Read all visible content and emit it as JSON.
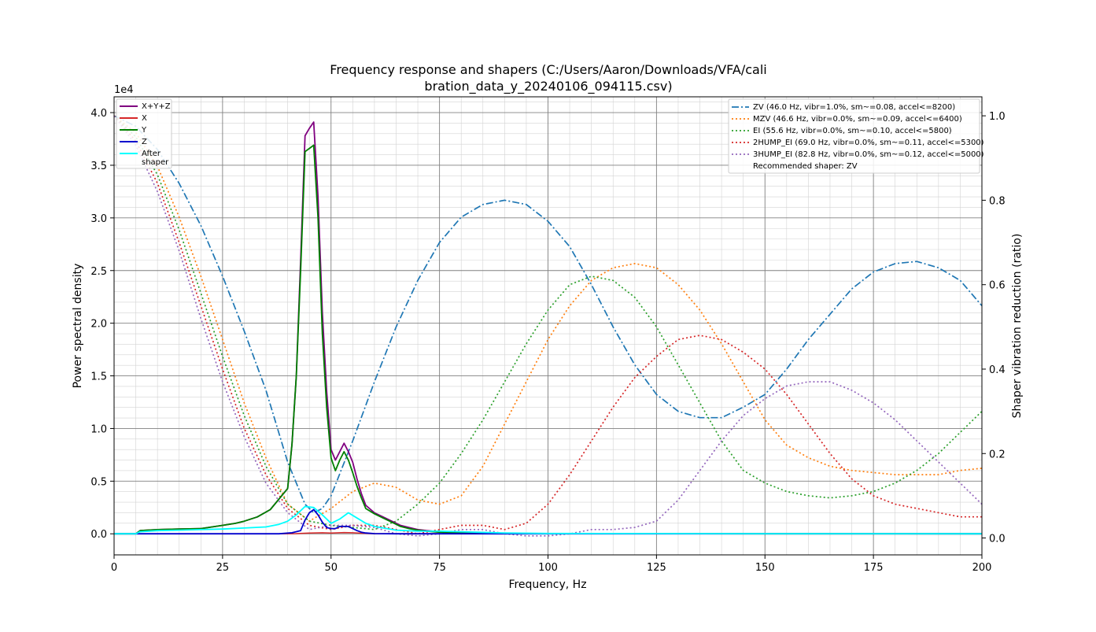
{
  "chart_data": {
    "type": "line",
    "title_lines": [
      "Frequency response and shapers (C:/Users/Aaron/Downloads/VFA/cali",
      "bration_data_y_20240106_094115.csv)"
    ],
    "xlabel": "Frequency, Hz",
    "ylabel": "Power spectral density",
    "y2label": "Shaper vibration reduction (ratio)",
    "y_offset_label": "1e4",
    "xlim": [
      0,
      200
    ],
    "ylim": [
      -2000,
      41500
    ],
    "y2lim": [
      -0.04,
      1.045
    ],
    "x_ticks": [
      0,
      25,
      50,
      75,
      100,
      125,
      150,
      175,
      200
    ],
    "y_ticks": [
      0,
      5000,
      10000,
      15000,
      20000,
      25000,
      30000,
      35000,
      40000
    ],
    "y_tick_labels": [
      "0.0",
      "0.5",
      "1.0",
      "1.5",
      "2.0",
      "2.5",
      "3.0",
      "3.5",
      "4.0"
    ],
    "y2_ticks": [
      0,
      0.2,
      0.4,
      0.6,
      0.8,
      1.0
    ],
    "y2_tick_labels": [
      "0.0",
      "0.2",
      "0.4",
      "0.6",
      "0.8",
      "1.0"
    ],
    "grid": true,
    "legend_left_position": "top-left",
    "legend_right_position": "top-right",
    "psd_series": [
      {
        "name": "X+Y+Z",
        "color": "#800080",
        "width": 1.8,
        "x": [
          0,
          5,
          6,
          10,
          15,
          20,
          25,
          28,
          30,
          33,
          36,
          38,
          40,
          41,
          42,
          43,
          44,
          45,
          46,
          47,
          48,
          49,
          50,
          51,
          52,
          53,
          54,
          55,
          56,
          57,
          58,
          60,
          62,
          64,
          66,
          68,
          70,
          72,
          75,
          80,
          90,
          100,
          150,
          200
        ],
        "y": [
          0,
          0,
          300,
          400,
          450,
          500,
          800,
          1000,
          1200,
          1600,
          2300,
          3300,
          4300,
          8500,
          15000,
          26000,
          37800,
          38500,
          39100,
          32000,
          21000,
          13500,
          8000,
          7000,
          7800,
          8600,
          7800,
          6800,
          5200,
          3800,
          2700,
          2000,
          1600,
          1200,
          800,
          600,
          400,
          300,
          200,
          100,
          50,
          20,
          10,
          0
        ]
      },
      {
        "name": "X",
        "color": "#d62728",
        "width": 1.5,
        "x": [
          0,
          38,
          42,
          45,
          48,
          50,
          53,
          55,
          58,
          60,
          200
        ],
        "y": [
          0,
          0,
          20,
          80,
          100,
          80,
          120,
          100,
          40,
          10,
          0
        ]
      },
      {
        "name": "Y",
        "color": "#008000",
        "width": 1.8,
        "x": [
          0,
          5,
          6,
          10,
          15,
          20,
          25,
          28,
          30,
          33,
          36,
          38,
          40,
          41,
          42,
          43,
          44,
          45,
          46,
          47,
          48,
          49,
          50,
          51,
          52,
          53,
          54,
          55,
          56,
          57,
          58,
          60,
          62,
          64,
          66,
          68,
          70,
          72,
          75,
          80,
          90,
          100,
          150,
          200
        ],
        "y": [
          0,
          0,
          300,
          400,
          450,
          500,
          800,
          1000,
          1200,
          1600,
          2300,
          3300,
          4300,
          8500,
          15000,
          25000,
          36300,
          36600,
          36900,
          30000,
          19000,
          12000,
          7200,
          6000,
          7000,
          7800,
          7000,
          5800,
          4500,
          3400,
          2400,
          1900,
          1500,
          1100,
          700,
          500,
          350,
          250,
          150,
          80,
          40,
          15,
          5,
          0
        ]
      },
      {
        "name": "Z",
        "color": "#0000cd",
        "width": 1.8,
        "x": [
          0,
          38,
          41,
          43,
          44,
          45,
          46,
          47,
          48,
          49,
          50,
          51,
          52,
          53,
          54,
          55,
          56,
          57,
          58,
          60,
          65,
          200
        ],
        "y": [
          0,
          0,
          100,
          300,
          1300,
          2000,
          2300,
          1800,
          1100,
          600,
          500,
          500,
          700,
          700,
          700,
          500,
          300,
          150,
          80,
          20,
          0,
          0
        ]
      },
      {
        "name": "After\nshaper",
        "color": "#00ffff",
        "width": 1.8,
        "x": [
          0,
          5,
          6,
          10,
          15,
          20,
          25,
          30,
          35,
          38,
          40,
          42,
          44,
          46,
          48,
          50,
          52,
          54,
          56,
          58,
          60,
          65,
          70,
          75,
          80,
          90,
          100,
          150,
          200
        ],
        "y": [
          0,
          0,
          200,
          300,
          350,
          400,
          450,
          550,
          650,
          900,
          1200,
          1800,
          2600,
          2500,
          1800,
          1000,
          1400,
          2000,
          1500,
          1000,
          700,
          350,
          250,
          250,
          200,
          80,
          30,
          10,
          0
        ]
      }
    ],
    "shaper_series": [
      {
        "name": "ZV (46.0 Hz, vibr=1.0%, sm~=0.08, accel<=8200)",
        "color": "#1f77b4",
        "style": "dashdot",
        "x": [
          0,
          5,
          10,
          15,
          20,
          25,
          30,
          35,
          40,
          44,
          46,
          48,
          50,
          55,
          60,
          65,
          70,
          75,
          80,
          85,
          90,
          95,
          100,
          105,
          110,
          115,
          120,
          125,
          130,
          135,
          140,
          145,
          150,
          155,
          160,
          165,
          170,
          175,
          180,
          185,
          190,
          195,
          200
        ],
        "y": [
          1.0,
          0.975,
          0.92,
          0.84,
          0.74,
          0.62,
          0.49,
          0.35,
          0.18,
          0.08,
          0.06,
          0.07,
          0.1,
          0.23,
          0.37,
          0.5,
          0.61,
          0.7,
          0.76,
          0.79,
          0.8,
          0.79,
          0.75,
          0.69,
          0.6,
          0.5,
          0.41,
          0.34,
          0.3,
          0.285,
          0.285,
          0.31,
          0.34,
          0.4,
          0.47,
          0.53,
          0.59,
          0.63,
          0.65,
          0.655,
          0.64,
          0.61,
          0.55
        ]
      },
      {
        "name": "MZV (46.6 Hz, vibr=0.0%, sm~=0.09, accel<=6400)",
        "color": "#ff7f0e",
        "style": "dotted",
        "x": [
          0,
          5,
          10,
          15,
          20,
          25,
          30,
          35,
          40,
          45,
          50,
          55,
          60,
          65,
          70,
          75,
          80,
          85,
          90,
          95,
          100,
          105,
          110,
          115,
          120,
          125,
          130,
          135,
          140,
          145,
          150,
          155,
          160,
          165,
          170,
          175,
          180,
          185,
          190,
          195,
          200
        ],
        "y": [
          1.0,
          0.96,
          0.88,
          0.76,
          0.62,
          0.47,
          0.32,
          0.19,
          0.08,
          0.04,
          0.07,
          0.11,
          0.13,
          0.12,
          0.09,
          0.08,
          0.1,
          0.17,
          0.27,
          0.37,
          0.47,
          0.55,
          0.61,
          0.64,
          0.65,
          0.64,
          0.6,
          0.54,
          0.46,
          0.37,
          0.28,
          0.22,
          0.19,
          0.17,
          0.16,
          0.155,
          0.15,
          0.15,
          0.15,
          0.16,
          0.165
        ]
      },
      {
        "name": "EI (55.6 Hz, vibr=0.0%, sm~=0.10, accel<=5800)",
        "color": "#2ca02c",
        "style": "dotted",
        "x": [
          0,
          5,
          10,
          15,
          20,
          25,
          30,
          35,
          40,
          45,
          50,
          55,
          60,
          65,
          70,
          75,
          80,
          85,
          90,
          95,
          100,
          105,
          110,
          115,
          120,
          125,
          130,
          135,
          140,
          145,
          150,
          155,
          160,
          165,
          170,
          175,
          180,
          185,
          190,
          195,
          200
        ],
        "y": [
          1.0,
          0.95,
          0.86,
          0.73,
          0.58,
          0.43,
          0.29,
          0.17,
          0.08,
          0.04,
          0.03,
          0.025,
          0.02,
          0.04,
          0.08,
          0.13,
          0.2,
          0.28,
          0.37,
          0.46,
          0.54,
          0.6,
          0.62,
          0.61,
          0.57,
          0.5,
          0.41,
          0.32,
          0.23,
          0.16,
          0.13,
          0.11,
          0.1,
          0.095,
          0.1,
          0.11,
          0.13,
          0.16,
          0.2,
          0.25,
          0.3
        ]
      },
      {
        "name": "2HUMP_EI (69.0 Hz, vibr=0.0%, sm~=0.11, accel<=5300)",
        "color": "#d62728",
        "style": "dotted",
        "x": [
          0,
          5,
          10,
          15,
          20,
          25,
          30,
          35,
          40,
          45,
          50,
          55,
          60,
          65,
          70,
          75,
          80,
          85,
          90,
          95,
          100,
          105,
          110,
          115,
          120,
          125,
          130,
          135,
          140,
          145,
          150,
          155,
          160,
          165,
          170,
          175,
          180,
          185,
          190,
          195,
          200
        ],
        "y": [
          1.0,
          0.94,
          0.84,
          0.7,
          0.55,
          0.4,
          0.26,
          0.15,
          0.07,
          0.03,
          0.02,
          0.03,
          0.03,
          0.02,
          0.01,
          0.02,
          0.03,
          0.03,
          0.02,
          0.035,
          0.08,
          0.15,
          0.23,
          0.31,
          0.38,
          0.43,
          0.47,
          0.48,
          0.47,
          0.44,
          0.4,
          0.34,
          0.27,
          0.2,
          0.14,
          0.1,
          0.08,
          0.07,
          0.06,
          0.05,
          0.05
        ]
      },
      {
        "name": "3HUMP_EI (82.8 Hz, vibr=0.0%, sm~=0.12, accel<=5000)",
        "color": "#9467bd",
        "style": "dotted",
        "x": [
          0,
          5,
          10,
          15,
          20,
          25,
          30,
          35,
          40,
          45,
          50,
          55,
          60,
          65,
          70,
          75,
          80,
          85,
          90,
          95,
          100,
          105,
          110,
          115,
          120,
          125,
          130,
          135,
          140,
          145,
          150,
          155,
          160,
          165,
          170,
          175,
          180,
          185,
          190,
          195,
          200
        ],
        "y": [
          1.0,
          0.93,
          0.82,
          0.68,
          0.52,
          0.37,
          0.24,
          0.13,
          0.06,
          0.02,
          0.03,
          0.03,
          0.025,
          0.01,
          0.005,
          0.01,
          0.02,
          0.02,
          0.01,
          0.005,
          0.005,
          0.01,
          0.02,
          0.02,
          0.025,
          0.04,
          0.09,
          0.16,
          0.23,
          0.29,
          0.33,
          0.36,
          0.37,
          0.37,
          0.35,
          0.32,
          0.28,
          0.23,
          0.18,
          0.13,
          0.08
        ]
      }
    ],
    "recommended_text": "Recommended shaper: ZV"
  }
}
